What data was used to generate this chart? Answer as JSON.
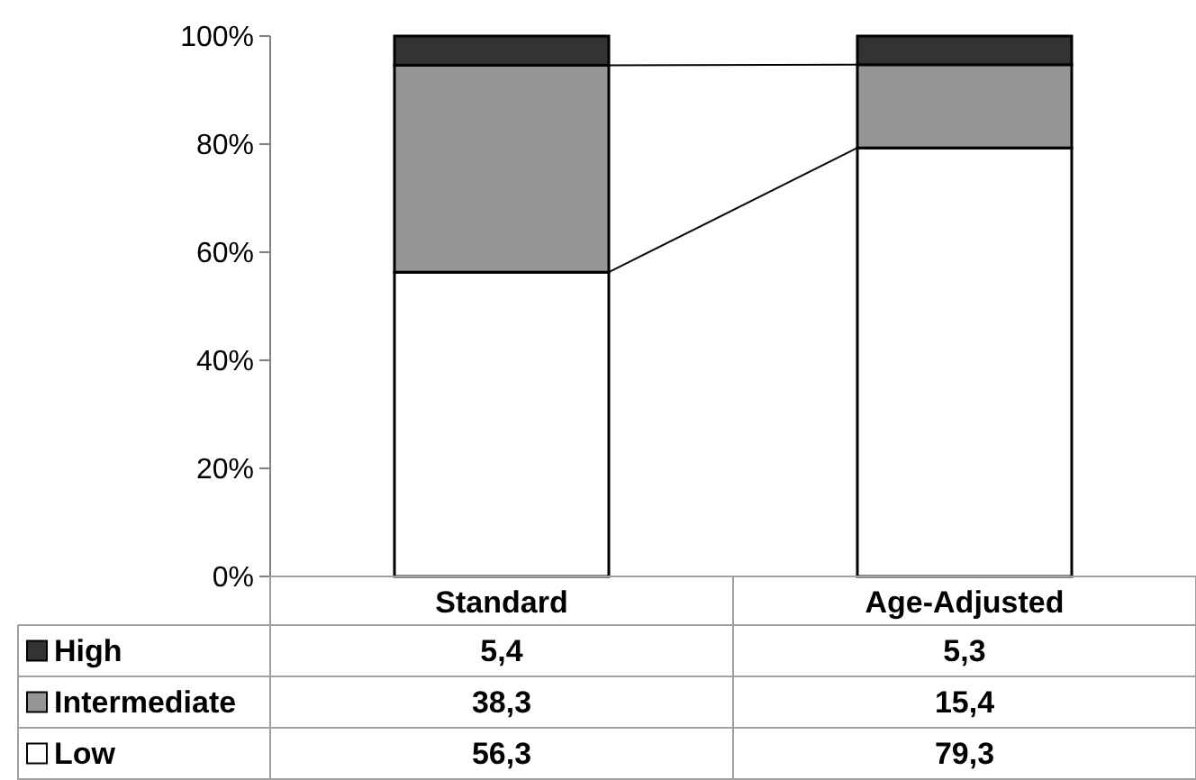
{
  "chart_data": {
    "type": "bar",
    "stacked": true,
    "categories": [
      "Standard",
      "Age-Adjusted"
    ],
    "series": [
      {
        "name": "Low",
        "color": "#ffffff",
        "values": [
          56.3,
          79.3
        ],
        "value_labels": [
          "56,3",
          "79,3"
        ]
      },
      {
        "name": "Intermediate",
        "color": "#969696",
        "values": [
          38.3,
          15.4
        ],
        "value_labels": [
          "38,3",
          "15,4"
        ]
      },
      {
        "name": "High",
        "color": "#333333",
        "values": [
          5.4,
          5.3
        ],
        "value_labels": [
          "5,4",
          "5,3"
        ]
      }
    ],
    "ylim": [
      0,
      100
    ],
    "yticks": [
      {
        "value": 0,
        "label": "0%"
      },
      {
        "value": 20,
        "label": "20%"
      },
      {
        "value": 40,
        "label": "40%"
      },
      {
        "value": 60,
        "label": "60%"
      },
      {
        "value": 80,
        "label": "80%"
      },
      {
        "value": 100,
        "label": "100%"
      }
    ],
    "legend": "bottom left"
  }
}
